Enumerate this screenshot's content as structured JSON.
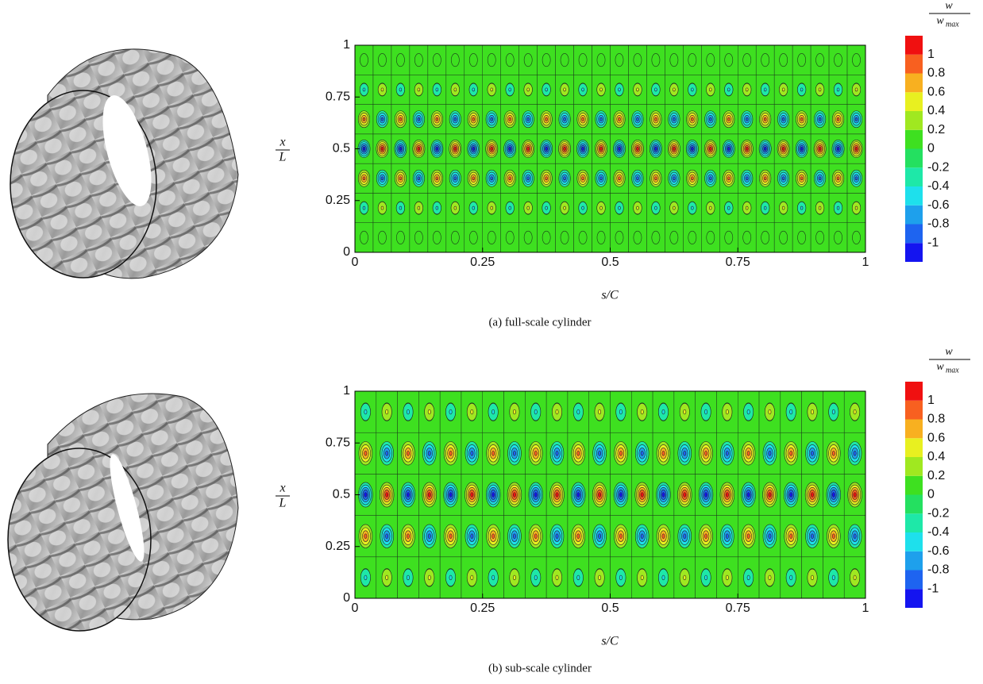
{
  "chart_data": [
    {
      "type": "contour",
      "caption": "(a) full-scale cylinder",
      "x_label": "s/C",
      "y_label": {
        "numerator": "x",
        "denominator": "L"
      },
      "colorbar_label": {
        "numerator": "w",
        "denominator": "w",
        "denominator_sub": "max"
      },
      "xlim": [
        0,
        1
      ],
      "ylim": [
        0,
        1
      ],
      "xticks": [
        0,
        0.25,
        0.5,
        0.75,
        1
      ],
      "yticks": [
        0,
        0.25,
        0.5,
        0.75,
        1
      ],
      "levels": [
        -1,
        -0.8,
        -0.6,
        -0.4,
        -0.2,
        0,
        0.2,
        0.4,
        0.6,
        0.8,
        1
      ],
      "colors": [
        "#1414f0",
        "#1e64f0",
        "#1ea0ec",
        "#1ee0ec",
        "#1ee8a8",
        "#24e060",
        "#3ee020",
        "#a0e820",
        "#e8f020",
        "#f8b020",
        "#f86020",
        "#f01010"
      ],
      "z": [
        [
          0.1,
          -0.1,
          0.1,
          -0.1,
          0.1,
          -0.1,
          0.1,
          -0.1,
          0.1,
          -0.1,
          0.1,
          -0.1,
          0.1,
          -0.1,
          0.1,
          -0.1,
          0.1,
          -0.1,
          0.1,
          -0.1,
          0.1,
          -0.1,
          0.1,
          -0.1,
          0.1,
          -0.1,
          0.1,
          -0.1
        ],
        [
          -0.4,
          0.4,
          -0.4,
          0.4,
          -0.4,
          0.4,
          -0.4,
          0.4,
          -0.4,
          0.4,
          -0.4,
          0.4,
          -0.4,
          0.4,
          -0.4,
          0.4,
          -0.4,
          0.4,
          -0.4,
          0.4,
          -0.4,
          0.4,
          -0.4,
          0.4,
          -0.4,
          0.4,
          -0.4,
          0.4
        ],
        [
          0.8,
          -0.8,
          0.8,
          -0.8,
          0.8,
          -0.8,
          0.8,
          -0.8,
          0.8,
          -0.8,
          0.8,
          -0.8,
          0.8,
          -0.8,
          0.8,
          -0.8,
          0.8,
          -0.8,
          0.8,
          -0.8,
          0.8,
          -0.8,
          0.8,
          -0.8,
          0.8,
          -0.8,
          0.8,
          -0.8
        ],
        [
          -1,
          1,
          -1,
          1,
          -1,
          1,
          -1,
          1,
          -1,
          1,
          -1,
          1,
          -1,
          1,
          -1,
          1,
          -1,
          1,
          -1,
          1,
          -1,
          1,
          -1,
          1,
          -1,
          1,
          -1,
          1
        ],
        [
          0.8,
          -0.8,
          0.8,
          -0.8,
          0.8,
          -0.8,
          0.8,
          -0.8,
          0.8,
          -0.8,
          0.8,
          -0.8,
          0.8,
          -0.8,
          0.8,
          -0.8,
          0.8,
          -0.8,
          0.8,
          -0.8,
          0.8,
          -0.8,
          0.8,
          -0.8,
          0.8,
          -0.8,
          0.8,
          -0.8
        ],
        [
          -0.4,
          0.4,
          -0.4,
          0.4,
          -0.4,
          0.4,
          -0.4,
          0.4,
          -0.4,
          0.4,
          -0.4,
          0.4,
          -0.4,
          0.4,
          -0.4,
          0.4,
          -0.4,
          0.4,
          -0.4,
          0.4,
          -0.4,
          0.4,
          -0.4,
          0.4,
          -0.4,
          0.4,
          -0.4,
          0.4
        ],
        [
          0.1,
          -0.1,
          0.1,
          -0.1,
          0.1,
          -0.1,
          0.1,
          -0.1,
          0.1,
          -0.1,
          0.1,
          -0.1,
          0.1,
          -0.1,
          0.1,
          -0.1,
          0.1,
          -0.1,
          0.1,
          -0.1,
          0.1,
          -0.1,
          0.1,
          -0.1,
          0.1,
          -0.1,
          0.1,
          -0.1
        ]
      ]
    },
    {
      "type": "contour",
      "caption": "(b) sub-scale cylinder",
      "x_label": "s/C",
      "y_label": {
        "numerator": "x",
        "denominator": "L"
      },
      "colorbar_label": {
        "numerator": "w",
        "denominator": "w",
        "denominator_sub": "max"
      },
      "xlim": [
        0,
        1
      ],
      "ylim": [
        0,
        1
      ],
      "xticks": [
        0,
        0.25,
        0.5,
        0.75,
        1
      ],
      "yticks": [
        0,
        0.25,
        0.5,
        0.75,
        1
      ],
      "levels": [
        -1,
        -0.8,
        -0.6,
        -0.4,
        -0.2,
        0,
        0.2,
        0.4,
        0.6,
        0.8,
        1
      ],
      "colors": [
        "#1414f0",
        "#1e64f0",
        "#1ea0ec",
        "#1ee0ec",
        "#1ee8a8",
        "#24e060",
        "#3ee020",
        "#a0e820",
        "#e8f020",
        "#f8b020",
        "#f86020",
        "#f01010"
      ],
      "z": [
        [
          -0.4,
          0.4,
          -0.4,
          0.4,
          -0.4,
          0.4,
          -0.4,
          0.4,
          -0.4,
          0.4,
          -0.4,
          0.4,
          -0.4,
          0.4,
          -0.4,
          0.4,
          -0.4,
          0.4,
          -0.4,
          0.4,
          -0.4,
          0.4,
          -0.4,
          0.4
        ],
        [
          0.8,
          -0.8,
          0.8,
          -0.8,
          0.8,
          -0.8,
          0.8,
          -0.8,
          0.8,
          -0.8,
          0.8,
          -0.8,
          0.8,
          -0.8,
          0.8,
          -0.8,
          0.8,
          -0.8,
          0.8,
          -0.8,
          0.8,
          -0.8,
          0.8,
          -0.8
        ],
        [
          -1,
          1,
          -1,
          1,
          -1,
          1,
          -1,
          1,
          -1,
          1,
          -1,
          1,
          -1,
          1,
          -1,
          1,
          -1,
          1,
          -1,
          1,
          -1,
          1,
          -1,
          1
        ],
        [
          0.8,
          -0.8,
          0.8,
          -0.8,
          0.8,
          -0.8,
          0.8,
          -0.8,
          0.8,
          -0.8,
          0.8,
          -0.8,
          0.8,
          -0.8,
          0.8,
          -0.8,
          0.8,
          -0.8,
          0.8,
          -0.8,
          0.8,
          -0.8,
          0.8,
          -0.8
        ],
        [
          -0.4,
          0.4,
          -0.4,
          0.4,
          -0.4,
          0.4,
          -0.4,
          0.4,
          -0.4,
          0.4,
          -0.4,
          0.4,
          -0.4,
          0.4,
          -0.4,
          0.4,
          -0.4,
          0.4,
          -0.4,
          0.4,
          -0.4,
          0.4,
          -0.4,
          0.4
        ]
      ]
    }
  ]
}
